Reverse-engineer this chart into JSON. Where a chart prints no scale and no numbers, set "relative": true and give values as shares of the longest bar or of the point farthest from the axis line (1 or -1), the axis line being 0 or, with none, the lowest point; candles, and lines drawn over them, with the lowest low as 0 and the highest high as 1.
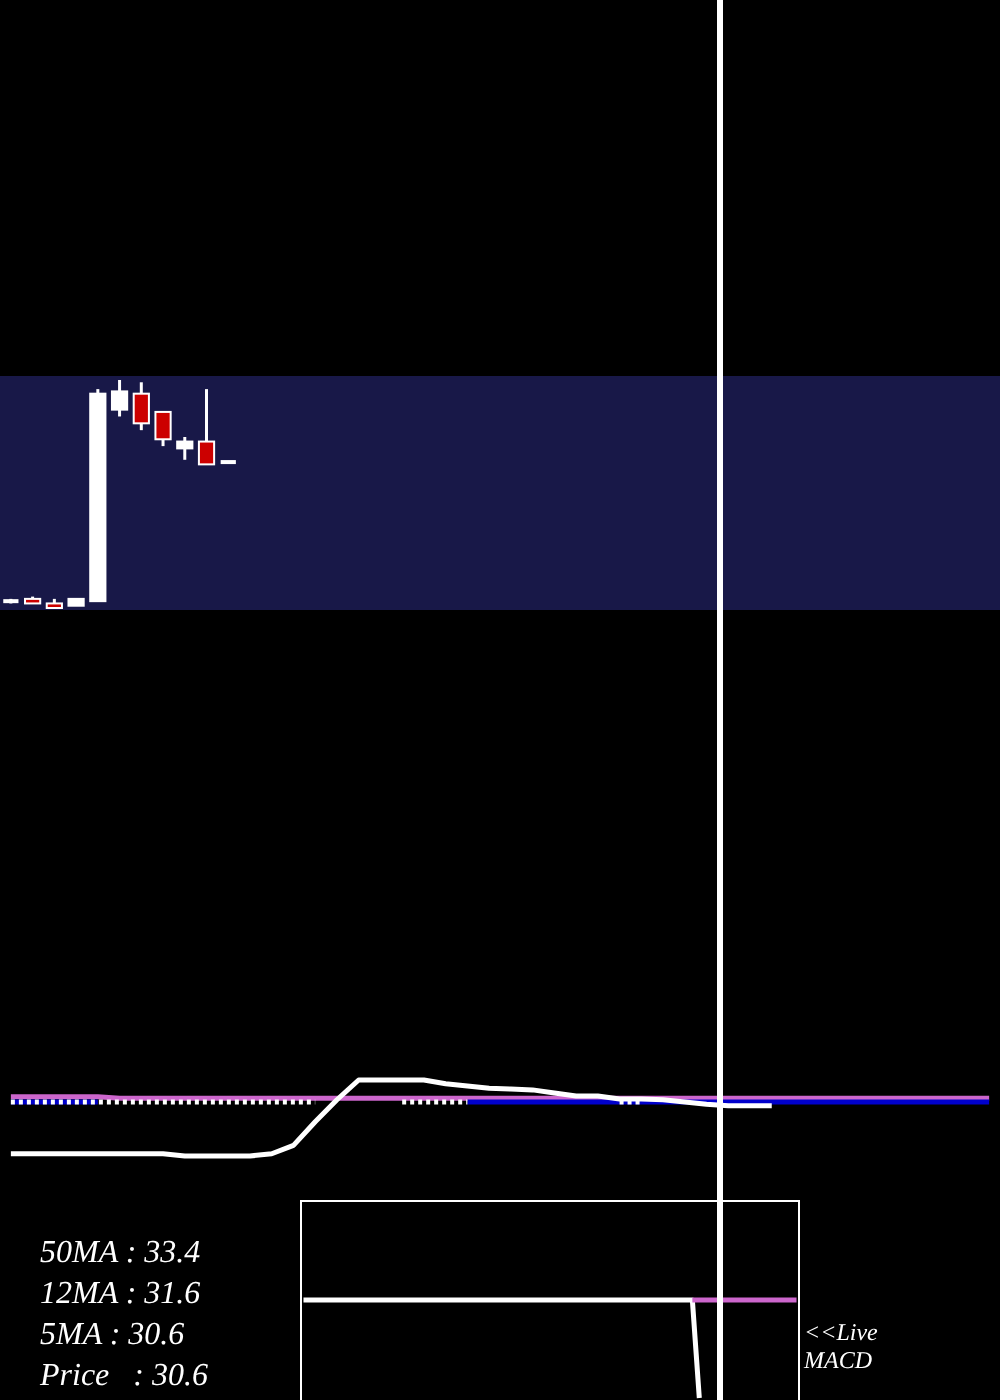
{
  "chart_data": [
    {
      "type": "candlestick",
      "relative": true,
      "categories": [
        null,
        null,
        null,
        null,
        null,
        null,
        null,
        null,
        null,
        null,
        null,
        null,
        null,
        null,
        null,
        null,
        null,
        null,
        null,
        null,
        null,
        null,
        null,
        null,
        null,
        null,
        null,
        null,
        null,
        null,
        null,
        null,
        null,
        null,
        null,
        null,
        null,
        null,
        null,
        null,
        null,
        null,
        null,
        null,
        null,
        null
      ],
      "ohlc": [
        [
          0.03,
          0.04,
          0.02,
          0.03
        ],
        [
          0.04,
          0.05,
          0.02,
          0.02
        ],
        [
          0.02,
          0.04,
          0,
          0
        ],
        [
          0.01,
          0.04,
          0.01,
          0.04
        ],
        [
          0.03,
          0.96,
          0.03,
          0.94
        ],
        [
          0.87,
          1,
          0.84,
          0.95
        ],
        [
          0.94,
          0.99,
          0.78,
          0.81
        ],
        [
          0.86,
          0.86,
          0.71,
          0.74
        ],
        [
          0.7,
          0.75,
          0.65,
          0.73
        ],
        [
          0.73,
          0.96,
          0.63,
          0.63
        ],
        [
          0.64,
          0.64,
          0.64,
          0.64
        ],
        null,
        null,
        null,
        null,
        null,
        null,
        null,
        null,
        null,
        null,
        null,
        null,
        null,
        null,
        null,
        null,
        null,
        null,
        null,
        null,
        null,
        null,
        null,
        null,
        null,
        null,
        null,
        null,
        null,
        null,
        null,
        null,
        null,
        null,
        null
      ],
      "colors": [
        "#ffffff",
        "#cc0000",
        "#cc0000",
        "#ffffff",
        "#ffffff",
        "#ffffff",
        "#cc0000",
        "#cc0000",
        "#ffffff",
        "#cc0000",
        "#ffffff",
        null,
        null,
        null,
        null,
        null,
        null,
        null,
        null,
        null,
        null,
        null,
        null,
        null,
        null,
        null,
        null,
        null,
        null,
        null,
        null,
        null,
        null,
        null,
        null,
        null,
        null,
        null,
        null,
        null,
        null,
        null,
        null,
        null,
        null,
        null
      ],
      "annotations": [
        "50MA : 33.4",
        "12MA : 31.6",
        "5MA : 30.6",
        "Price   : 30.6"
      ]
    },
    {
      "type": "line",
      "relative": true,
      "categories": [
        null,
        null,
        null,
        null,
        null,
        null,
        null,
        null,
        null,
        null,
        null,
        null,
        null,
        null,
        null,
        null,
        null,
        null,
        null,
        null,
        null,
        null,
        null,
        null,
        null,
        null,
        null,
        null,
        null,
        null,
        null,
        null,
        null,
        null,
        null,
        null,
        null,
        null,
        null,
        null,
        null,
        null,
        null,
        null,
        null,
        null
      ],
      "series": [
        {
          "color": "#cc66cc",
          "values": [
            0.78,
            0.78,
            0.78,
            0.78,
            0.78,
            0.76,
            0.76,
            0.76,
            0.76,
            0.76,
            0.76,
            0.76,
            0.76,
            0.76,
            0.76,
            0.76,
            0.76,
            0.76,
            0.76,
            0.76,
            0.76,
            0.76,
            0.76,
            0.76,
            0.76,
            0.76,
            0.76,
            0.76,
            0.76,
            0.76,
            0.76,
            0.76,
            0.76,
            0.76,
            0.76,
            0.76,
            0.76,
            0.76,
            0.76,
            0.76,
            0.76,
            0.76,
            0.76,
            0.76,
            0.76,
            0.76
          ]
        },
        {
          "color": "#0000cc",
          "values": [
            0.71,
            0.71,
            0.71,
            0.71,
            0.71,
            null,
            null,
            null,
            null,
            null,
            null,
            null,
            null,
            null,
            null,
            null,
            null,
            null,
            null,
            null,
            null,
            0.71,
            0.71,
            0.71,
            0.71,
            0.71,
            0.71,
            0.71,
            0.71,
            0.71,
            0.71,
            0.71,
            0.71,
            0.71,
            0.71,
            0.71,
            0.71,
            0.71,
            0.71,
            0.71,
            0.71,
            0.71,
            0.71,
            0.71,
            0.71,
            0.71
          ]
        },
        {
          "color": "#ffffff",
          "line_style": "dotted",
          "values": [
            0.71,
            0.71,
            0.71,
            0.71,
            0.71,
            0.71,
            0.71,
            0.71,
            0.71,
            0.71,
            0.71,
            0.71,
            0.71,
            0.71,
            0.71,
            null,
            null,
            null,
            0.71,
            0.71,
            0.71,
            0.71,
            null,
            null,
            null,
            null,
            null,
            null,
            0.71,
            0.71,
            null,
            null,
            null,
            null,
            null,
            null,
            null,
            null,
            null,
            null,
            null,
            null,
            null,
            null,
            null,
            null
          ]
        },
        {
          "color": "#ffffff",
          "values": [
            0.03,
            0.03,
            0.03,
            0.03,
            0.03,
            0.03,
            0.03,
            0.03,
            0,
            0,
            0,
            0,
            0.03,
            0.14,
            0.45,
            0.74,
            1,
            1,
            1,
            1,
            0.95,
            0.92,
            0.89,
            0.88,
            0.87,
            0.83,
            0.79,
            0.79,
            0.75,
            0.75,
            0.74,
            0.71,
            0.68,
            0.66,
            0.66,
            0.66,
            null,
            null,
            null,
            null,
            null,
            null,
            null,
            null,
            null,
            null
          ]
        }
      ]
    },
    {
      "type": "line",
      "relative": true,
      "categories": [
        null,
        null,
        null,
        null,
        null,
        null,
        null,
        null,
        null,
        null,
        null,
        null,
        null,
        null,
        null,
        null,
        null,
        null,
        null,
        null,
        null,
        null,
        null,
        null,
        null,
        null,
        null,
        null,
        null,
        null,
        null,
        null,
        null,
        null,
        null,
        null,
        null,
        null,
        null,
        null,
        null,
        null,
        null,
        null,
        null,
        null,
        null,
        null,
        null,
        null,
        null,
        null,
        null,
        null,
        null,
        null,
        null,
        null,
        null,
        null,
        null,
        null,
        null,
        null,
        null,
        null,
        null,
        null,
        null,
        null,
        null,
        null
      ],
      "series": [
        {
          "color": "#ffffff",
          "values": [
            1,
            1,
            1,
            1,
            1,
            1,
            1,
            1,
            1,
            1,
            1,
            1,
            1,
            1,
            1,
            1,
            1,
            1,
            1,
            1,
            1,
            1,
            1,
            1,
            1,
            1,
            1,
            1,
            1,
            1,
            1,
            1,
            1,
            1,
            1,
            1,
            1,
            1,
            1,
            1,
            1,
            1,
            1,
            1,
            1,
            1,
            1,
            1,
            1,
            1,
            1,
            1,
            1,
            1,
            1,
            1,
            1,
            0,
            null,
            null,
            null,
            null,
            null,
            null,
            null,
            null,
            null,
            null,
            null,
            null,
            null,
            null
          ]
        },
        {
          "color": "#cc66cc",
          "values": [
            null,
            null,
            null,
            null,
            null,
            null,
            null,
            null,
            null,
            null,
            null,
            null,
            null,
            null,
            null,
            null,
            null,
            null,
            null,
            null,
            null,
            null,
            null,
            null,
            null,
            null,
            null,
            null,
            null,
            null,
            null,
            null,
            null,
            null,
            null,
            null,
            null,
            null,
            null,
            null,
            null,
            null,
            null,
            null,
            null,
            null,
            null,
            null,
            null,
            null,
            null,
            null,
            null,
            null,
            null,
            null,
            1,
            1,
            1,
            1,
            1,
            1,
            1,
            1,
            1,
            1,
            1,
            1,
            1,
            1,
            1,
            1
          ]
        }
      ],
      "annotations": [
        "<<Live MACD"
      ]
    }
  ]
}
